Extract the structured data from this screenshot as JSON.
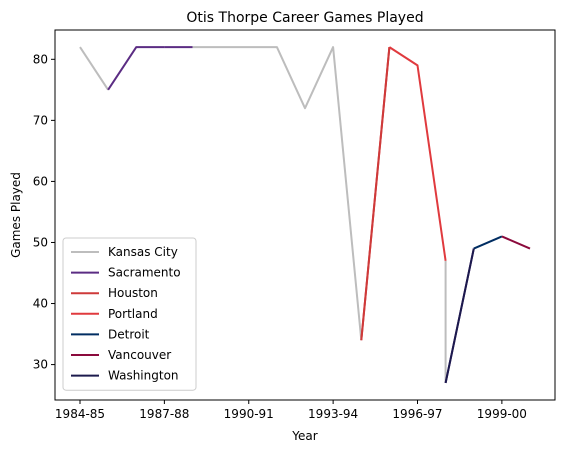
{
  "chart_data": {
    "type": "line",
    "title": "Otis Thorpe Career Games Played",
    "xlabel": "Year",
    "ylabel": "Games Played",
    "x_labels": [
      "1984-85",
      "1985-86",
      "1986-87",
      "1987-88",
      "1988-89",
      "1989-90",
      "1990-91",
      "1991-92",
      "1992-93",
      "1993-94",
      "1994-95",
      "1995-96",
      "1996-97",
      "1997-98",
      "1998-99",
      "1999-00",
      "2000-01"
    ],
    "x_ticks": [
      "1984-85",
      "1987-88",
      "1990-91",
      "1993-94",
      "1996-97",
      "1999-00"
    ],
    "y_ticks": [
      30,
      40,
      50,
      60,
      70,
      80
    ],
    "ylim": [
      24.2,
      84.8
    ],
    "grid": false,
    "legend_position": "lower-left",
    "series": [
      {
        "name": "Kansas City",
        "color": "#bdbdbd",
        "points": [
          [
            "1984-85",
            82
          ],
          [
            "1985-86",
            75
          ]
        ]
      },
      {
        "name": "Sacramento",
        "color": "#5b2c83",
        "points": [
          [
            "1985-86",
            75
          ],
          [
            "1986-87",
            82
          ],
          [
            "1987-88",
            82
          ]
        ]
      },
      {
        "name": "Houston",
        "color": "#ce3a3a",
        "points": [
          [
            "1994-95",
            34
          ],
          [
            "1995-96",
            82
          ]
        ]
      },
      {
        "name": "Portland",
        "color": "#e03a3e",
        "points": [
          [
            "1995-96",
            82
          ],
          [
            "1996-97",
            79
          ],
          [
            "1997-98",
            47
          ]
        ]
      },
      {
        "name": "Detroit",
        "color": "#002d62",
        "points": [
          [
            "1998-99",
            49
          ],
          [
            "1999-00",
            51
          ]
        ]
      },
      {
        "name": "Vancouver",
        "color": "#8b0a3c",
        "points": [
          [
            "1999-00",
            51
          ],
          [
            "2000-01",
            49
          ]
        ]
      },
      {
        "name": "Washington",
        "color": "#1c1a4d",
        "points": [
          [
            "1997-98",
            27
          ],
          [
            "1998-99",
            49
          ]
        ]
      }
    ],
    "unlabeled_segments": [
      {
        "color": "#5b2c83",
        "points": [
          [
            "1987-88",
            82
          ],
          [
            "1988-89",
            82
          ]
        ]
      },
      {
        "color": "#bdbdbd",
        "points": [
          [
            "1988-89",
            82
          ],
          [
            "1989-90",
            82
          ],
          [
            "1990-91",
            82
          ],
          [
            "1991-92",
            82
          ],
          [
            "1992-93",
            72
          ],
          [
            "1993-94",
            82
          ],
          [
            "1994-95",
            34
          ]
        ]
      },
      {
        "color": "#bdbdbd",
        "points": [
          [
            "1997-98",
            47
          ],
          [
            "1997-98",
            27
          ]
        ]
      },
      {
        "color": "#5b2c83",
        "points": [
          [
            "1997-98",
            27
          ],
          [
            "1998-99",
            49
          ]
        ]
      },
      {
        "color": "#e03a3e",
        "points": [
          [
            "1994-95",
            34
          ],
          [
            "1995-96",
            82
          ]
        ]
      }
    ]
  }
}
